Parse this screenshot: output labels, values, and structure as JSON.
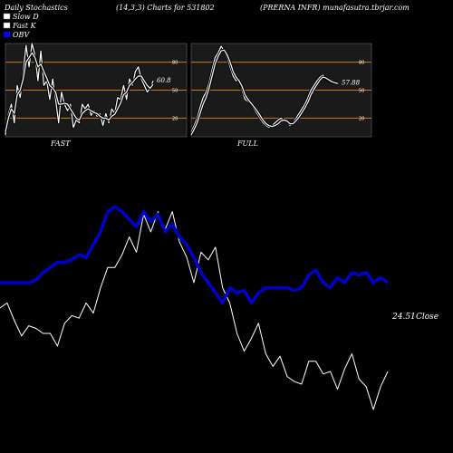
{
  "header": {
    "left": "Daily Stochastics",
    "center": "(14,3,3) Charts for 531802",
    "right": "(PRERNA INFR) munafasutra.tbrjar.com"
  },
  "legend": [
    {
      "label": "Slow  D",
      "color": "#ffffff"
    },
    {
      "label": "Fast K",
      "color": "#ffffff"
    },
    {
      "label": "OBV",
      "color": "#0000ff"
    }
  ],
  "colors": {
    "background": "#000000",
    "panel": "#1a1a1a",
    "level_line": "#c87a1a",
    "obv": "#0000cc",
    "price": "#ffffff"
  },
  "chart_data": [
    {
      "type": "line",
      "title": "FAST",
      "ylim": [
        0,
        100
      ],
      "yticks": [
        "80",
        "50",
        "20"
      ],
      "last_value_label": "60.8",
      "series": [
        {
          "name": "Fast K",
          "values": [
            2,
            25,
            35,
            15,
            55,
            42,
            70,
            98,
            75,
            100,
            88,
            60,
            92,
            55,
            60,
            40,
            62,
            40,
            15,
            48,
            35,
            28,
            35,
            10,
            18,
            15,
            35,
            30,
            35,
            23,
            28,
            22,
            25,
            12,
            25,
            15,
            30,
            25,
            42,
            40,
            55,
            40,
            62,
            55,
            70,
            75,
            62,
            55,
            48,
            52,
            60
          ]
        },
        {
          "name": "Slow D",
          "values": [
            5,
            20,
            30,
            25,
            45,
            50,
            62,
            80,
            85,
            90,
            85,
            75,
            78,
            70,
            63,
            55,
            52,
            48,
            35,
            35,
            36,
            35,
            30,
            25,
            20,
            18,
            25,
            28,
            30,
            28,
            26,
            25,
            22,
            20,
            20,
            18,
            22,
            24,
            30,
            36,
            45,
            48,
            55,
            58,
            62,
            65,
            65,
            60,
            55,
            52,
            56
          ]
        }
      ]
    },
    {
      "type": "line",
      "title": "FULL",
      "ylim": [
        0,
        100
      ],
      "yticks": [
        "80",
        "50",
        "20"
      ],
      "last_value_label": "57.88",
      "series": [
        {
          "name": "Fast K",
          "values": [
            5,
            12,
            20,
            32,
            42,
            48,
            58,
            72,
            85,
            90,
            97,
            92,
            85,
            75,
            65,
            60,
            62,
            50,
            40,
            38,
            35,
            30,
            25,
            20,
            15,
            12,
            10,
            12,
            15,
            18,
            20,
            18,
            16,
            12,
            15,
            20,
            25,
            30,
            35,
            42,
            50,
            55,
            60,
            64,
            66,
            62,
            60,
            58,
            59,
            58
          ]
        },
        {
          "name": "Slow D",
          "values": [
            2,
            8,
            15,
            25,
            35,
            42,
            52,
            65,
            78,
            86,
            92,
            93,
            88,
            80,
            70,
            64,
            60,
            54,
            45,
            40,
            36,
            32,
            28,
            23,
            18,
            14,
            12,
            11,
            12,
            14,
            17,
            18,
            17,
            14,
            14,
            17,
            21,
            26,
            31,
            37,
            45,
            51,
            56,
            61,
            64,
            63,
            61,
            59,
            58,
            57
          ]
        }
      ]
    },
    {
      "type": "line",
      "title": "",
      "last_value_label": "24.51",
      "close_label": "Close",
      "series": [
        {
          "name": "Price",
          "values": [
            50,
            52,
            45,
            39,
            43,
            42,
            40,
            40,
            35,
            44,
            47,
            46,
            52,
            48,
            58,
            66,
            66,
            71,
            78,
            72,
            87,
            80,
            88,
            81,
            88,
            76,
            70,
            60,
            72,
            69,
            74,
            58,
            52,
            40,
            33,
            38,
            44,
            32,
            27,
            31,
            23,
            21,
            20,
            29,
            29,
            24,
            25,
            18,
            26,
            32,
            22,
            19,
            10,
            19,
            25
          ]
        },
        {
          "name": "OBV",
          "values": [
            60,
            60,
            60,
            60,
            60,
            61,
            64,
            66,
            68,
            68,
            69,
            71,
            70,
            75,
            80,
            88,
            90,
            88,
            85,
            82,
            88,
            84,
            87,
            80,
            83,
            78,
            75,
            70,
            64,
            60,
            56,
            52,
            58,
            56,
            57,
            52,
            56,
            58,
            58,
            58,
            58,
            57,
            58,
            63,
            65,
            60,
            58,
            62,
            60,
            64,
            63,
            64,
            60,
            62,
            60
          ]
        }
      ]
    }
  ]
}
